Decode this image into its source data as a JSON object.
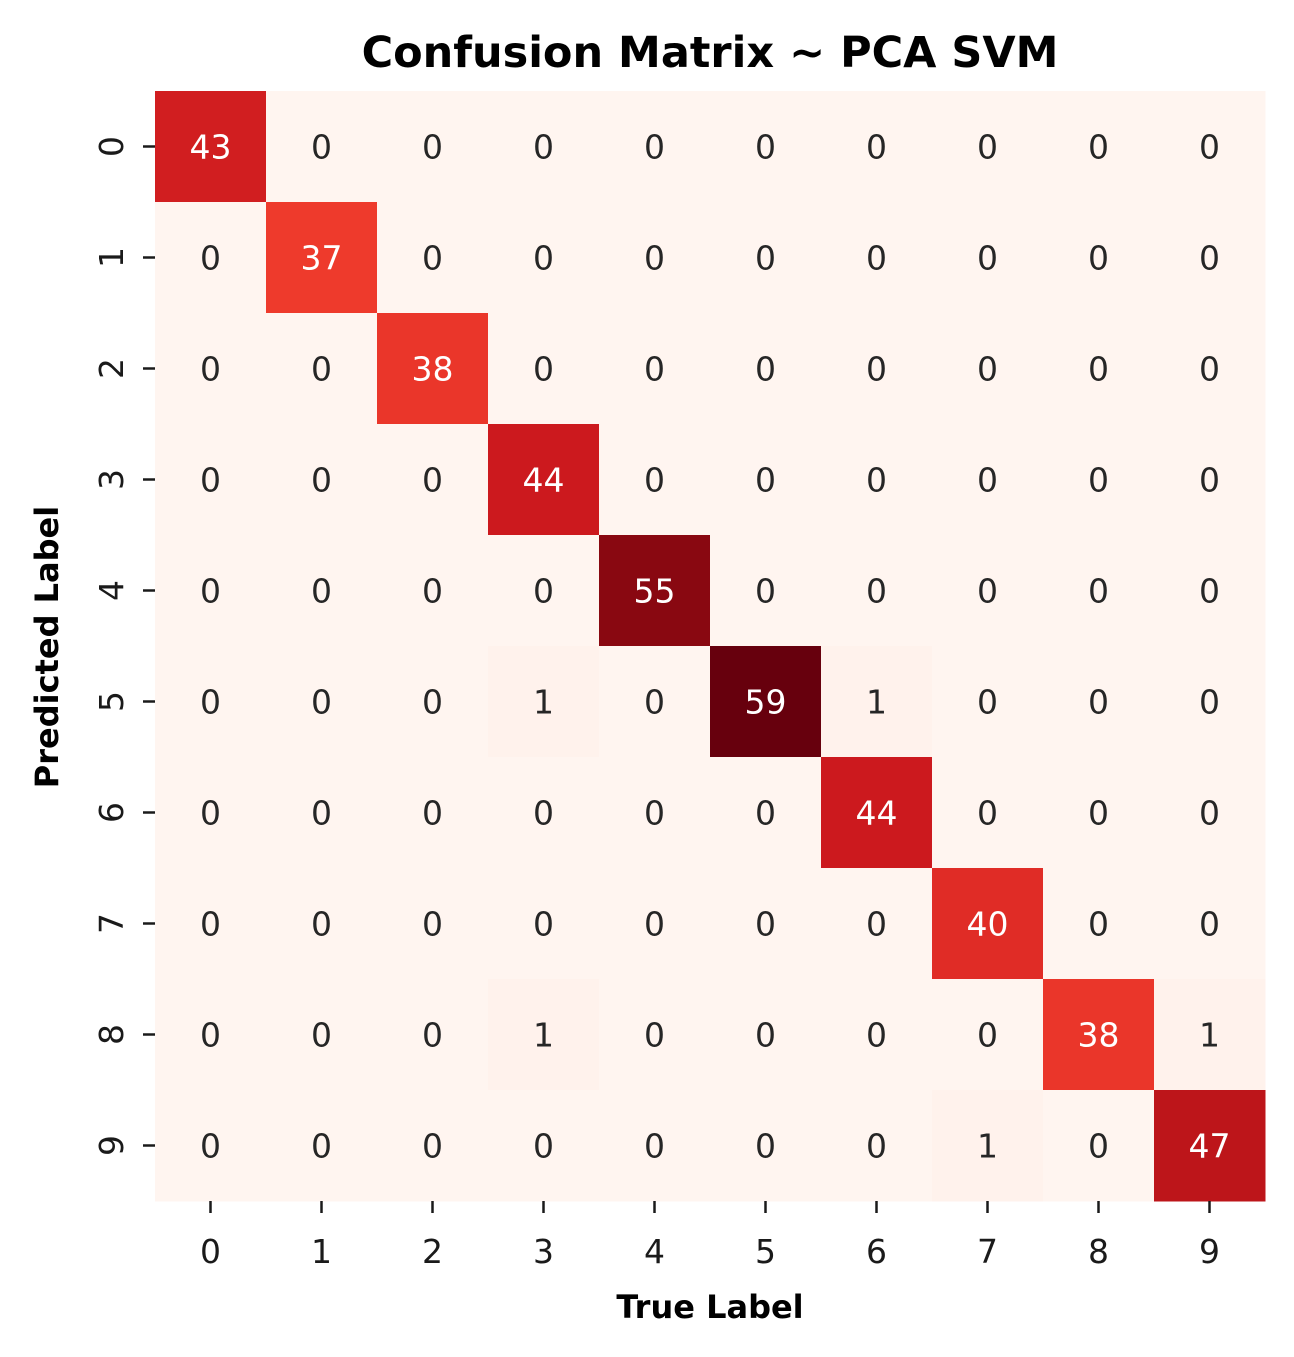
{
  "chart_data": {
    "type": "heatmap",
    "title": "Confusion Matrix ~ PCA SVM",
    "xlabel": "True Label",
    "ylabel": "Predicted Label",
    "x_categories": [
      "0",
      "1",
      "2",
      "3",
      "4",
      "5",
      "6",
      "7",
      "8",
      "9"
    ],
    "y_categories": [
      "0",
      "1",
      "2",
      "3",
      "4",
      "5",
      "6",
      "7",
      "8",
      "9"
    ],
    "values": [
      [
        43,
        0,
        0,
        0,
        0,
        0,
        0,
        0,
        0,
        0
      ],
      [
        0,
        37,
        0,
        0,
        0,
        0,
        0,
        0,
        0,
        0
      ],
      [
        0,
        0,
        38,
        0,
        0,
        0,
        0,
        0,
        0,
        0
      ],
      [
        0,
        0,
        0,
        44,
        0,
        0,
        0,
        0,
        0,
        0
      ],
      [
        0,
        0,
        0,
        0,
        55,
        0,
        0,
        0,
        0,
        0
      ],
      [
        0,
        0,
        0,
        1,
        0,
        59,
        1,
        0,
        0,
        0
      ],
      [
        0,
        0,
        0,
        0,
        0,
        0,
        44,
        0,
        0,
        0
      ],
      [
        0,
        0,
        0,
        0,
        0,
        0,
        0,
        40,
        0,
        0
      ],
      [
        0,
        0,
        0,
        1,
        0,
        0,
        0,
        0,
        38,
        1
      ],
      [
        0,
        0,
        0,
        0,
        0,
        0,
        0,
        1,
        0,
        47
      ]
    ],
    "colormap": "Reds",
    "value_range": [
      0,
      59
    ],
    "colorbar": false,
    "annotations": true,
    "colors": {
      "low": "#fff5f0",
      "high": "#67000d",
      "text_dark": "#262626",
      "text_light": "#ffffff"
    }
  }
}
